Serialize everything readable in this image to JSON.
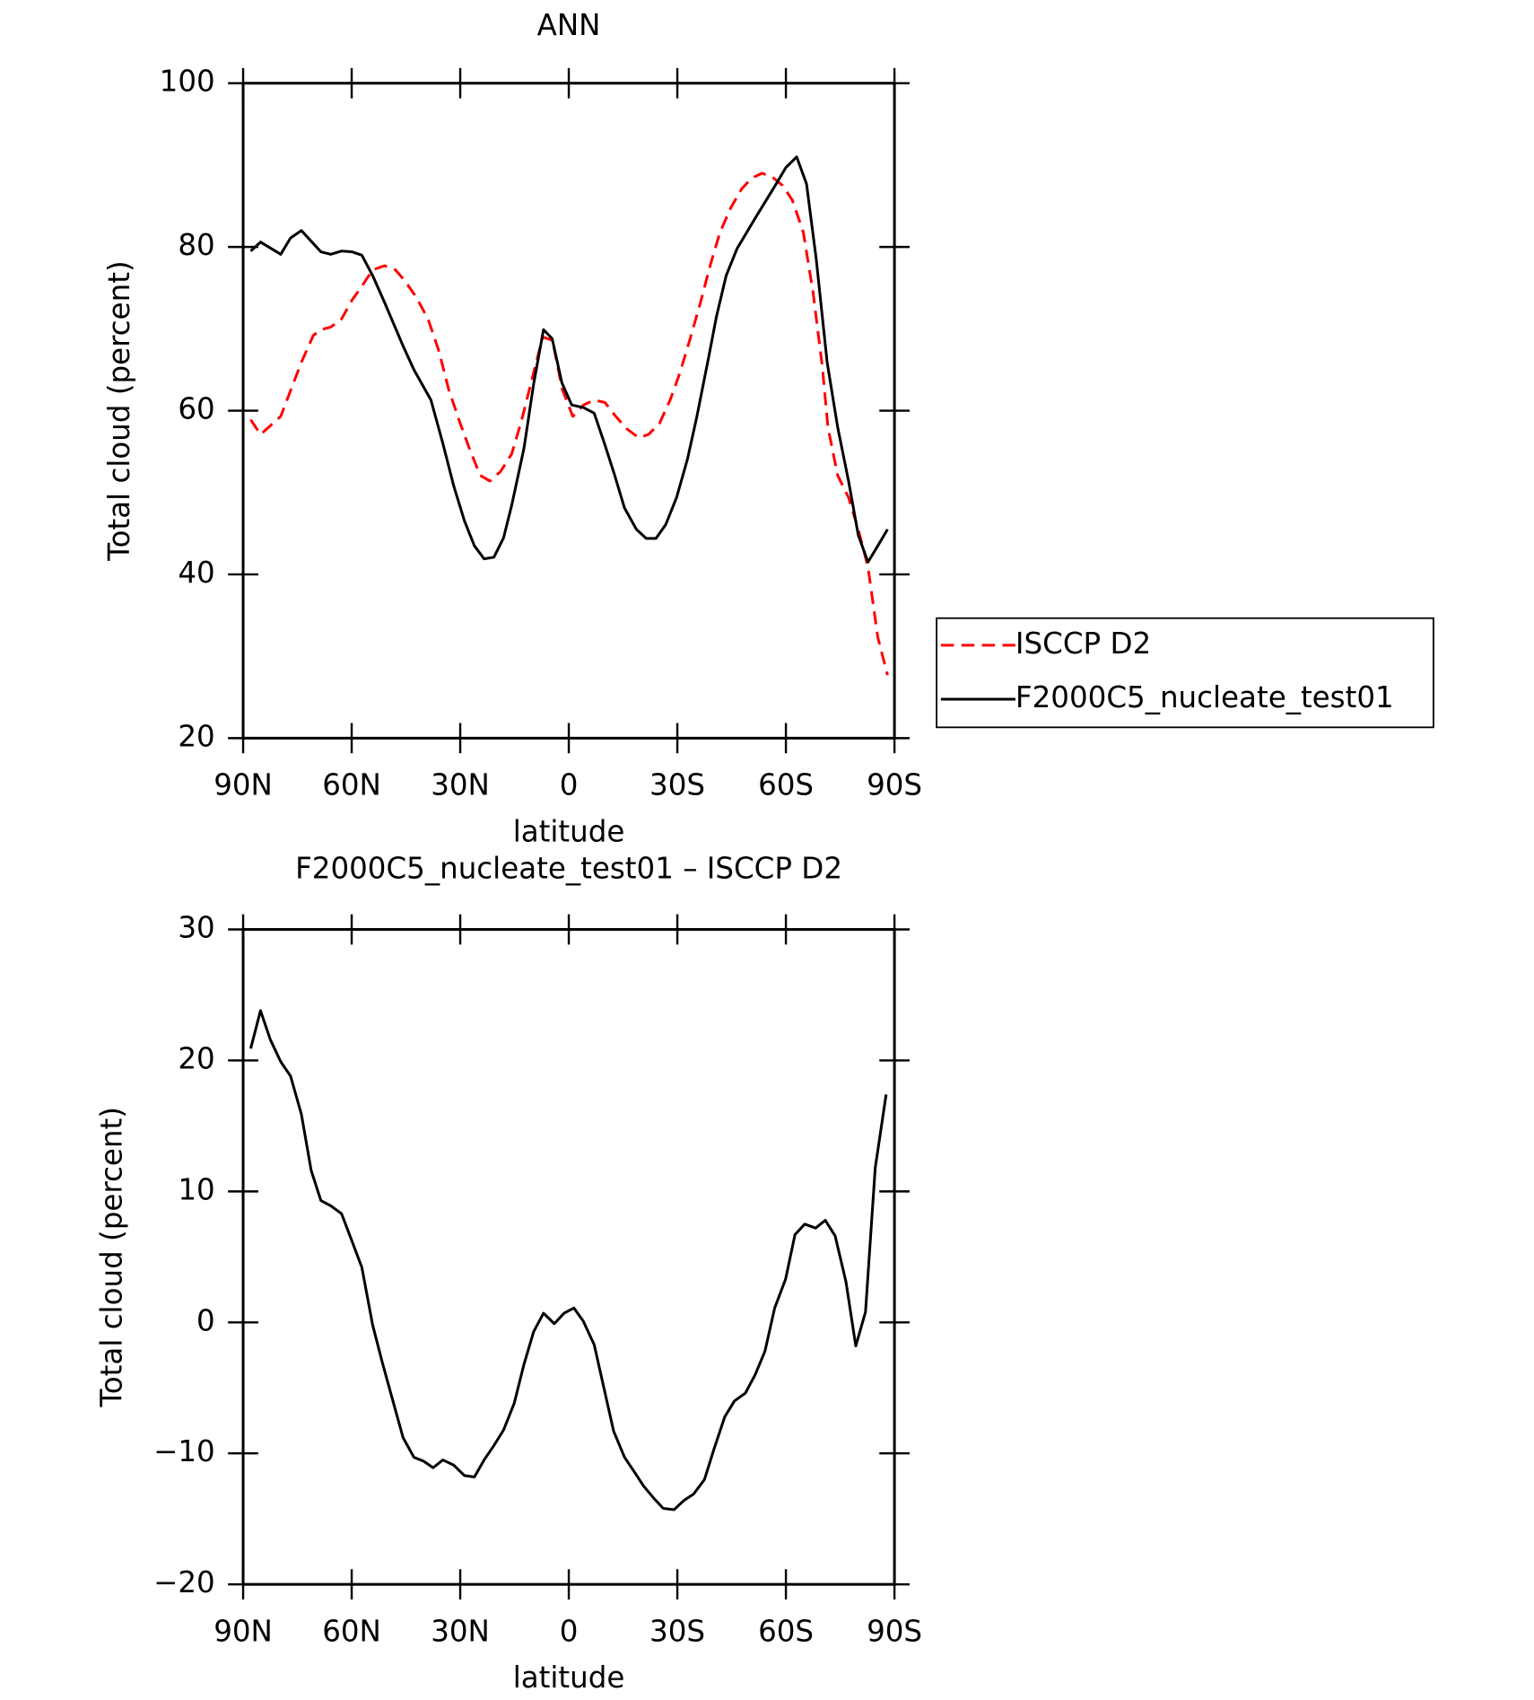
{
  "chart_data": [
    {
      "type": "line",
      "title": "ANN",
      "xlabel": "latitude",
      "ylabel": "Total cloud (percent)",
      "xlim": [
        90,
        -90
      ],
      "xticks": [
        {
          "value": 90,
          "label": "90N"
        },
        {
          "value": 60,
          "label": "60N"
        },
        {
          "value": 30,
          "label": "30N"
        },
        0,
        {
          "value": -30,
          "label": "30S"
        },
        {
          "value": -60,
          "label": "60S"
        },
        {
          "value": -90,
          "label": "90S"
        }
      ],
      "ylim": [
        20,
        100
      ],
      "yticks": [
        20,
        40,
        60,
        80,
        100
      ],
      "legend": "right",
      "series": [
        {
          "name": "ISCCP D2",
          "color": "#ff0000",
          "dash": true,
          "x": [
            87.9,
            85.2,
            79.6,
            73.9,
            70.6,
            68.5,
            65.8,
            62.8,
            59.9,
            57.2,
            54.2,
            50.9,
            47.9,
            45.2,
            42.2,
            38.9,
            35.9,
            33.2,
            30.2,
            27.5,
            24.5,
            21.8,
            18.8,
            15.8,
            13.1,
            10.1,
            7.2,
            4.5,
            1.8,
            -1.1,
            -4.1,
            -7.0,
            -10.0,
            -13.0,
            -16.0,
            -19.3,
            -22.0,
            -25.0,
            -28.0,
            -30.7,
            -33.4,
            -36.4,
            -39.1,
            -41.8,
            -44.8,
            -47.8,
            -50.5,
            -53.4,
            -56.1,
            -59.1,
            -61.8,
            -64.8,
            -67.5,
            -70.1,
            -71.6,
            -74.3,
            -77.3,
            -80.0,
            -82.7,
            -85.4,
            -88.1
          ],
          "values": [
            58.9,
            57.1,
            59.3,
            65.9,
            69.2,
            69.9,
            70.2,
            71.2,
            73.5,
            75.2,
            77.2,
            77.7,
            77.2,
            75.8,
            73.9,
            71.2,
            67.3,
            62.6,
            58.7,
            55.4,
            52.1,
            51.4,
            52.6,
            54.7,
            58.7,
            64.0,
            69.0,
            68.6,
            62.6,
            59.3,
            60.7,
            61.3,
            61.0,
            59.3,
            57.8,
            56.7,
            57.1,
            58.4,
            61.3,
            64.6,
            68.6,
            73.2,
            77.8,
            81.8,
            84.8,
            87.1,
            88.4,
            89.0,
            88.6,
            87.5,
            85.7,
            81.8,
            74.5,
            65.3,
            58.0,
            52.1,
            49.4,
            45.5,
            40.9,
            32.3,
            27.7
          ]
        },
        {
          "name": "F2000C5_nucleate_test01",
          "color": "#000000",
          "dash": false,
          "x": [
            87.9,
            85.2,
            79.6,
            76.9,
            73.9,
            68.5,
            65.8,
            62.8,
            59.9,
            57.2,
            54.2,
            50.9,
            45.8,
            42.8,
            38.1,
            34.8,
            31.8,
            28.8,
            26.1,
            23.4,
            20.7,
            18.0,
            15.7,
            12.4,
            9.7,
            7.0,
            4.6,
            1.9,
            -0.8,
            -4.0,
            -7.0,
            -10.0,
            -12.7,
            -15.4,
            -18.7,
            -21.4,
            -24.1,
            -26.8,
            -29.8,
            -32.8,
            -35.4,
            -38.7,
            -40.8,
            -43.5,
            -46.5,
            -51.9,
            -57.3,
            -60.0,
            -63.0,
            -65.7,
            -68.4,
            -71.4,
            -74.3,
            -77.3,
            -80.0,
            -82.7,
            -85.4,
            -88.1
          ],
          "values": [
            79.5,
            80.6,
            79.1,
            81.1,
            82.0,
            79.4,
            79.1,
            79.5,
            79.4,
            79.0,
            76.5,
            73.2,
            67.9,
            65.0,
            61.3,
            56.0,
            50.8,
            46.5,
            43.5,
            41.9,
            42.1,
            44.5,
            48.6,
            55.4,
            63.3,
            69.9,
            68.8,
            63.4,
            60.7,
            60.4,
            59.7,
            55.8,
            52.1,
            48.1,
            45.5,
            44.4,
            44.4,
            46.1,
            49.4,
            54.1,
            59.3,
            66.6,
            71.5,
            76.5,
            79.8,
            83.8,
            87.7,
            89.7,
            91.0,
            87.7,
            78.5,
            65.9,
            58.0,
            51.4,
            44.8,
            41.5,
            43.5,
            45.5
          ]
        }
      ]
    },
    {
      "type": "line",
      "title": "F2000C5_nucleate_test01 – ISCCP D2",
      "xlabel": "latitude",
      "ylabel": "Total cloud (percent)",
      "xlim": [
        90,
        -90
      ],
      "xticks": [
        {
          "value": 90,
          "label": "90N"
        },
        {
          "value": 60,
          "label": "60N"
        },
        {
          "value": 30,
          "label": "30N"
        },
        0,
        {
          "value": -30,
          "label": "30S"
        },
        {
          "value": -60,
          "label": "60S"
        },
        {
          "value": -90,
          "label": "90S"
        }
      ],
      "ylim": [
        -20,
        30
      ],
      "yticks": [
        {
          "value": -20,
          "label": "−20"
        },
        {
          "value": -10,
          "label": "−10"
        },
        0,
        10,
        20,
        30
      ],
      "series": [
        {
          "color": "#000000",
          "dash": false,
          "x": [
            87.9,
            85.2,
            82.5,
            79.6,
            76.9,
            73.9,
            71.2,
            68.5,
            65.8,
            62.8,
            59.9,
            57.2,
            54.2,
            51.5,
            48.8,
            45.8,
            42.8,
            40.1,
            37.5,
            34.8,
            31.8,
            28.8,
            26.1,
            23.4,
            20.7,
            18.0,
            15.1,
            12.4,
            9.7,
            7.0,
            4.0,
            1.3,
            -1.4,
            -4.0,
            -7.0,
            -9.7,
            -12.4,
            -15.4,
            -18.1,
            -20.7,
            -23.4,
            -26.1,
            -29.1,
            -31.8,
            -34.5,
            -37.5,
            -40.1,
            -43.1,
            -45.8,
            -48.8,
            -51.5,
            -54.2,
            -56.9,
            -59.9,
            -62.5,
            -65.2,
            -68.2,
            -70.9,
            -73.6,
            -76.6,
            -79.3,
            -82.0,
            -84.7,
            -87.7
          ],
          "values": [
            20.9,
            23.8,
            21.6,
            19.9,
            18.8,
            15.9,
            11.6,
            9.3,
            8.9,
            8.3,
            6.2,
            4.2,
            -0.2,
            -3.1,
            -5.8,
            -8.8,
            -10.3,
            -10.6,
            -11.1,
            -10.5,
            -10.9,
            -11.7,
            -11.8,
            -10.5,
            -9.4,
            -8.2,
            -6.2,
            -3.2,
            -0.7,
            0.7,
            -0.1,
            0.7,
            1.1,
            0.1,
            -1.7,
            -5.0,
            -8.3,
            -10.3,
            -11.4,
            -12.5,
            -13.4,
            -14.2,
            -14.3,
            -13.6,
            -13.1,
            -12.0,
            -9.7,
            -7.2,
            -6.0,
            -5.4,
            -4.0,
            -2.2,
            1.1,
            3.3,
            6.7,
            7.5,
            7.2,
            7.8,
            6.6,
            3.1,
            -1.8,
            0.8,
            11.8,
            17.4
          ]
        }
      ]
    }
  ]
}
